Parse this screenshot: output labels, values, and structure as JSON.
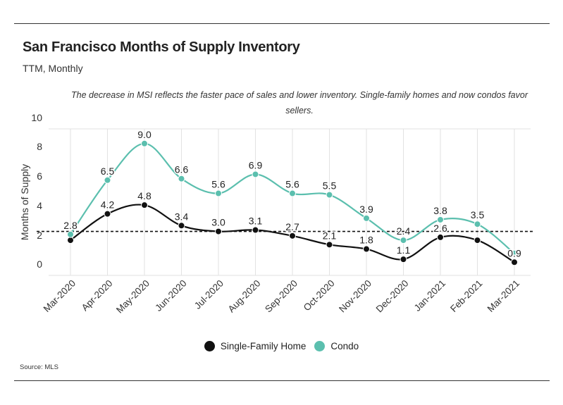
{
  "header": {
    "title": "San Francisco Months of Supply Inventory",
    "subtitle": "TTM, Monthly",
    "annotation": "The decrease in MSI reflects the faster pace of sales and lower inventory. Single-family homes and now condos favor sellers."
  },
  "footer": {
    "source": "Source:  MLS"
  },
  "colors": {
    "single_family": "#111111",
    "condo": "#5bbfae",
    "reference_line": "#111111",
    "grid": "#e2e2e2"
  },
  "chart_data": {
    "type": "line",
    "title": "San Francisco Months of Supply Inventory",
    "subtitle": "TTM, Monthly",
    "xlabel": "",
    "ylabel": "Months of Supply",
    "ylim": [
      0,
      10
    ],
    "yticks": [
      "0",
      "2",
      "4",
      "6",
      "8",
      "10"
    ],
    "categories": [
      "Mar-2020",
      "Apr-2020",
      "May-2020",
      "Jun-2020",
      "Jul-2020",
      "Aug-2020",
      "Sep-2020",
      "Oct-2020",
      "Nov-2020",
      "Dec-2020",
      "Jan-2021",
      "Feb-2021",
      "Mar-2021"
    ],
    "series": [
      {
        "name": "Single-Family Home",
        "color": "#111111",
        "values": [
          2.4,
          4.2,
          4.8,
          3.4,
          3.0,
          3.1,
          2.7,
          2.1,
          1.8,
          1.1,
          2.6,
          2.4,
          0.9
        ],
        "labels": [
          "",
          "4.2",
          "4.8",
          "3.4",
          "3.0",
          "3.1",
          "2.7",
          "2.1",
          "1.8",
          "1.1",
          "2.6",
          "",
          "0.9"
        ]
      },
      {
        "name": "Condo",
        "color": "#5bbfae",
        "values": [
          2.8,
          6.5,
          9.0,
          6.6,
          5.6,
          6.9,
          5.6,
          5.5,
          3.9,
          2.4,
          3.8,
          3.5,
          1.5
        ],
        "labels": [
          "2.8",
          "6.5",
          "9.0",
          "6.6",
          "5.6",
          "6.9",
          "5.6",
          "5.5",
          "3.9",
          "2.4",
          "3.8",
          "3.5",
          ""
        ]
      }
    ],
    "reference_line": {
      "value": 3.0,
      "style": "dashed"
    },
    "grid": {
      "vertical": true,
      "horizontal": false
    },
    "legend": {
      "position": "bottom-center"
    }
  }
}
